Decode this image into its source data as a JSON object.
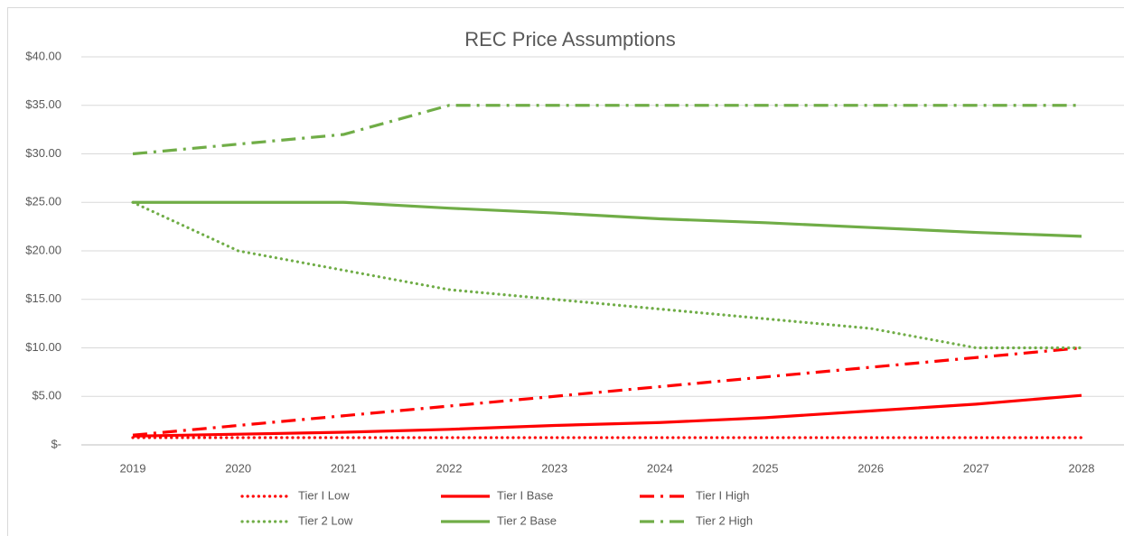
{
  "chart_data": {
    "type": "line",
    "title": "REC Price Assumptions",
    "categories": [
      "2019",
      "2020",
      "2021",
      "2022",
      "2023",
      "2024",
      "2025",
      "2026",
      "2027",
      "2028"
    ],
    "ylim": [
      0,
      40
    ],
    "yticks": [
      {
        "value": 0,
        "label": "$-"
      },
      {
        "value": 5,
        "label": "$5.00"
      },
      {
        "value": 10,
        "label": "$10.00"
      },
      {
        "value": 15,
        "label": "$15.00"
      },
      {
        "value": 20,
        "label": "$20.00"
      },
      {
        "value": 25,
        "label": "$25.00"
      },
      {
        "value": 30,
        "label": "$30.00"
      },
      {
        "value": 35,
        "label": "$35.00"
      },
      {
        "value": 40,
        "label": "$40.00"
      }
    ],
    "grid": true,
    "legend": "bottom",
    "series": [
      {
        "name": "Tier I Low",
        "color": "#ff0000",
        "style": "dotted",
        "values": [
          0.75,
          0.75,
          0.75,
          0.75,
          0.75,
          0.75,
          0.75,
          0.75,
          0.75,
          0.75
        ]
      },
      {
        "name": "Tier I Base",
        "color": "#ff0000",
        "style": "solid",
        "values": [
          0.9,
          1.1,
          1.3,
          1.6,
          2.0,
          2.3,
          2.8,
          3.5,
          4.2,
          5.1
        ]
      },
      {
        "name": "Tier I High",
        "color": "#ff0000",
        "style": "dash-dot",
        "values": [
          1,
          2,
          3,
          4,
          5,
          6,
          7,
          8,
          9,
          10
        ]
      },
      {
        "name": "Tier 2 Low",
        "color": "#70ad47",
        "style": "dotted",
        "values": [
          25,
          20,
          18,
          16,
          15,
          14,
          13,
          12,
          10,
          10
        ]
      },
      {
        "name": "Tier 2 Base",
        "color": "#70ad47",
        "style": "solid",
        "values": [
          25,
          25,
          25,
          24.4,
          23.9,
          23.3,
          22.9,
          22.4,
          21.9,
          21.5
        ]
      },
      {
        "name": "Tier 2 High",
        "color": "#70ad47",
        "style": "dash-dot",
        "values": [
          30,
          31,
          32,
          35,
          35,
          35,
          35,
          35,
          35,
          35
        ]
      }
    ]
  }
}
